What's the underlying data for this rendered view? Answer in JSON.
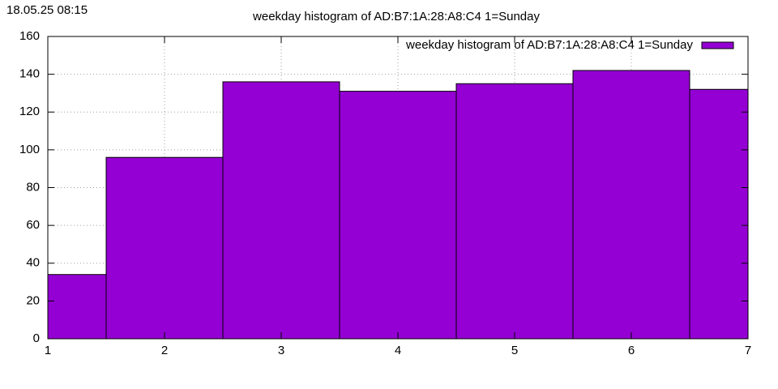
{
  "chart_data": {
    "type": "bar",
    "timestamp": "18.05.25 08:15",
    "title": "weekday histogram of AD:B7:1A:28:A8:C4 1=Sunday",
    "x": [
      1,
      2,
      3,
      4,
      5,
      6,
      7
    ],
    "series": [
      {
        "name": "weekday histogram of AD:B7:1A:28:A8:C4 1=Sunday",
        "color": "#9400d3",
        "values": [
          34,
          96,
          136,
          131,
          135,
          142,
          132
        ]
      }
    ],
    "bar_width": 1,
    "xlim": [
      1,
      7
    ],
    "xticks": [
      1,
      2,
      3,
      4,
      5,
      6,
      7
    ],
    "ylim": [
      0,
      160
    ],
    "yticks": [
      0,
      20,
      40,
      60,
      80,
      100,
      120,
      140,
      160
    ],
    "grid": true,
    "legend": "top-right"
  }
}
